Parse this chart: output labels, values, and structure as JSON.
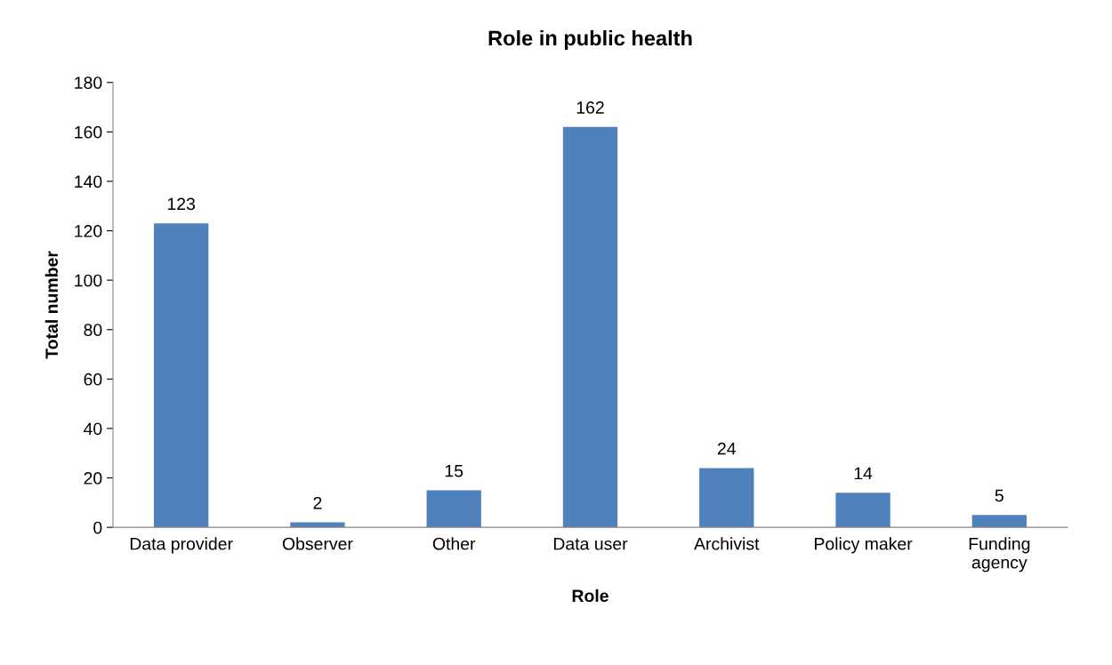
{
  "chart_data": {
    "type": "bar",
    "title": "Role in public health",
    "xlabel": "Role",
    "ylabel": "Total number",
    "categories": [
      "Data provider",
      "Observer",
      "Other",
      "Data user",
      "Archivist",
      "Policy maker",
      "Funding agency"
    ],
    "values": [
      123,
      2,
      15,
      162,
      24,
      14,
      5
    ],
    "color": "#4f81bd",
    "ylim": [
      0,
      180
    ],
    "yticks": [
      0,
      20,
      40,
      60,
      80,
      100,
      120,
      140,
      160,
      180
    ],
    "grid": false,
    "data_labels": true
  }
}
